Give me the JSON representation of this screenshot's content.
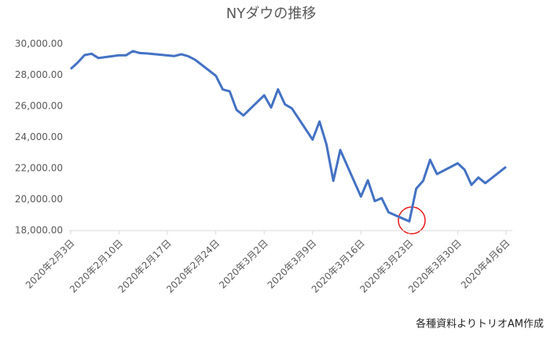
{
  "chart_data": {
    "type": "line",
    "title": "NYダウの推移",
    "x": [
      "2020-02-03",
      "2020-02-04",
      "2020-02-05",
      "2020-02-06",
      "2020-02-07",
      "2020-02-10",
      "2020-02-11",
      "2020-02-12",
      "2020-02-13",
      "2020-02-14",
      "2020-02-18",
      "2020-02-19",
      "2020-02-20",
      "2020-02-21",
      "2020-02-24",
      "2020-02-25",
      "2020-02-26",
      "2020-02-27",
      "2020-02-28",
      "2020-03-02",
      "2020-03-03",
      "2020-03-04",
      "2020-03-05",
      "2020-03-06",
      "2020-03-09",
      "2020-03-10",
      "2020-03-11",
      "2020-03-12",
      "2020-03-13",
      "2020-03-16",
      "2020-03-17",
      "2020-03-18",
      "2020-03-19",
      "2020-03-20",
      "2020-03-23",
      "2020-03-24",
      "2020-03-25",
      "2020-03-26",
      "2020-03-27",
      "2020-03-30",
      "2020-03-31",
      "2020-04-01",
      "2020-04-02",
      "2020-04-03",
      "2020-04-06"
    ],
    "series": [
      {
        "color": "#4472c4",
        "values": [
          28399,
          28807,
          29290,
          29379,
          29102,
          29276,
          29276,
          29551,
          29423,
          29398,
          29232,
          29348,
          29219,
          28992,
          27961,
          27081,
          26957,
          25766,
          25409,
          26703,
          25917,
          27091,
          26121,
          25864,
          23851,
          25018,
          23553,
          21200,
          23186,
          20189,
          21237,
          19899,
          20087,
          19174,
          18592,
          20705,
          21201,
          22552,
          21637,
          22327,
          21917,
          20944,
          21413,
          21053,
          22100
        ]
      }
    ],
    "xlim": [
      "2020-02-03",
      "2020-04-06"
    ],
    "xticks": [
      {
        "value": "2020-02-03",
        "label": "2020年2月3日"
      },
      {
        "value": "2020-02-10",
        "label": "2020年2月10日"
      },
      {
        "value": "2020-02-17",
        "label": "2020年2月17日"
      },
      {
        "value": "2020-02-24",
        "label": "2020年2月24日"
      },
      {
        "value": "2020-03-02",
        "label": "2020年3月2日"
      },
      {
        "value": "2020-03-09",
        "label": "2020年3月9日"
      },
      {
        "value": "2020-03-16",
        "label": "2020年3月16日"
      },
      {
        "value": "2020-03-23",
        "label": "2020年3月23日"
      },
      {
        "value": "2020-03-30",
        "label": "2020年3月30日"
      },
      {
        "value": "2020-04-06",
        "label": "2020年4月6日"
      }
    ],
    "ylim": [
      18000,
      30000
    ],
    "yticks": [
      {
        "value": 18000,
        "label": "18,000.00"
      },
      {
        "value": 20000,
        "label": "20,000.00"
      },
      {
        "value": 22000,
        "label": "22,000.00"
      },
      {
        "value": 24000,
        "label": "24,000.00"
      },
      {
        "value": 26000,
        "label": "26,000.00"
      },
      {
        "value": 28000,
        "label": "28,000.00"
      },
      {
        "value": 30000,
        "label": "30,000.00"
      }
    ],
    "source": "各種資料よりトリオAM作成"
  }
}
